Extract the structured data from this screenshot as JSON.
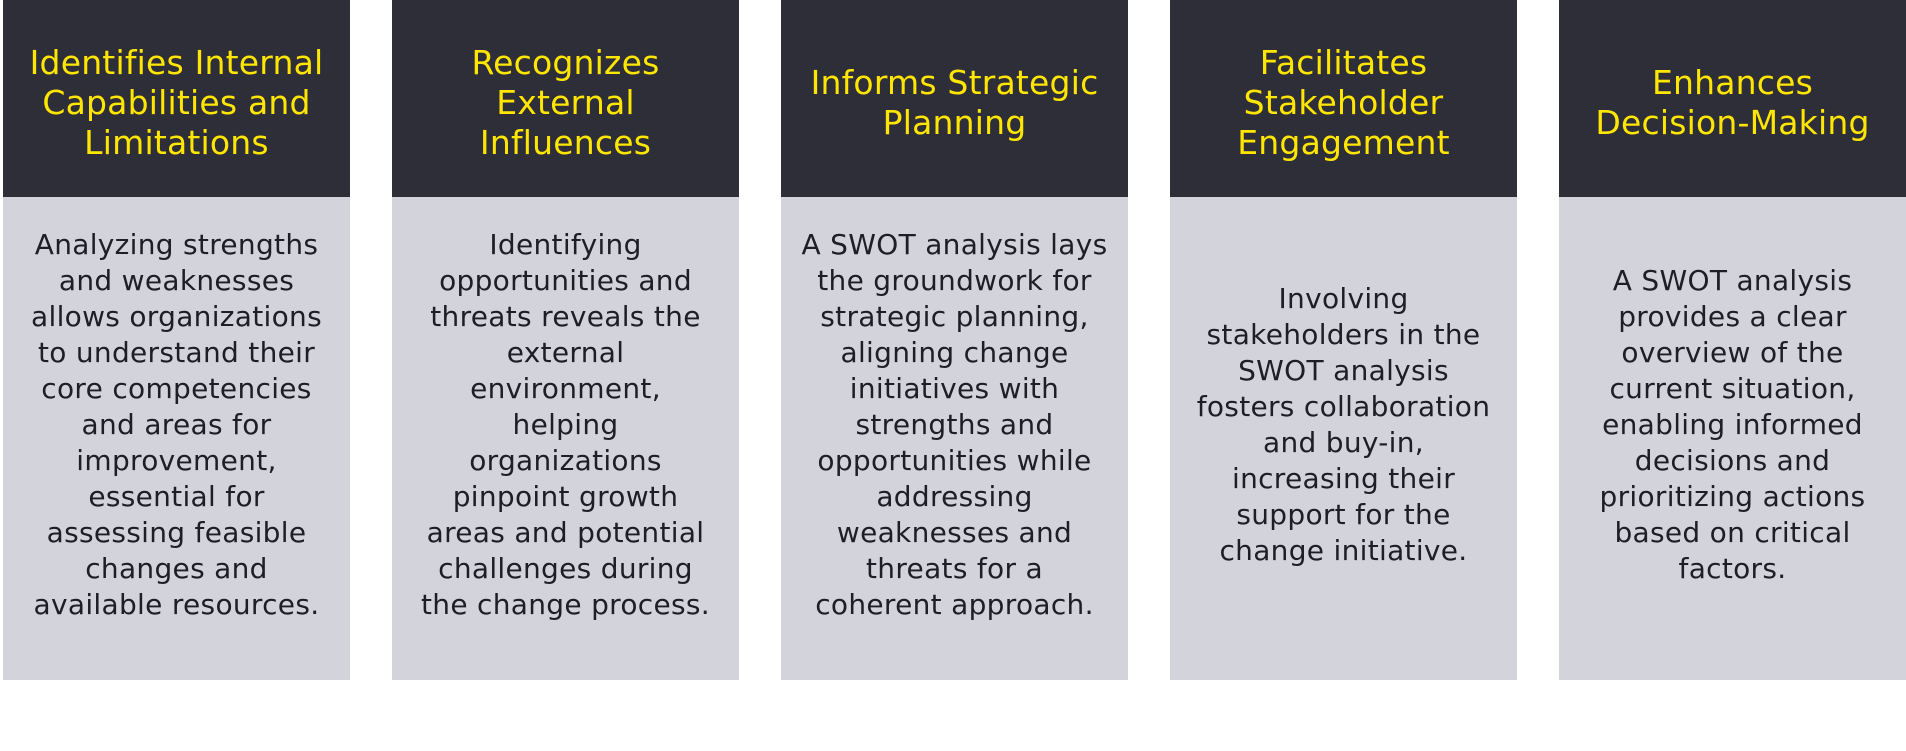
{
  "cards": [
    {
      "title": "Identifies Internal Capabilities and Limitations",
      "text": "Analyzing strengths and weaknesses allows organizations to understand their core competencies and areas for improvement, essential for assessing feasible changes and available resources."
    },
    {
      "title": "Recognizes External Influences",
      "text": "Identifying opportunities and threats reveals the external environment, helping organizations pinpoint growth areas and potential challenges during the change process."
    },
    {
      "title": "Informs Strategic Planning",
      "text": "A SWOT analysis lays the groundwork for strategic planning, aligning change initiatives with strengths and opportunities while addressing weaknesses and threats for a coherent approach."
    },
    {
      "title": "Facilitates Stakeholder Engagement",
      "text": "Involving stakeholders in the SWOT analysis fosters collaboration and buy-in, increasing their support for the change initiative."
    },
    {
      "title": "Enhances Decision-Making",
      "text": "A SWOT analysis provides a clear overview of the current situation, enabling informed decisions and prioritizing actions based on critical factors."
    }
  ],
  "colors": {
    "header_bg": "#2e2e38",
    "header_text": "#ffe600",
    "body_bg": "#d3d3db",
    "body_text": "#1e1e24"
  }
}
